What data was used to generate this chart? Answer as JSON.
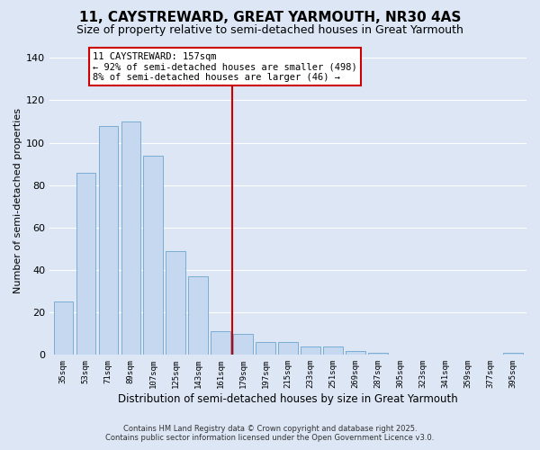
{
  "title": "11, CAYSTREWARD, GREAT YARMOUTH, NR30 4AS",
  "subtitle": "Size of property relative to semi-detached houses in Great Yarmouth",
  "xlabel": "Distribution of semi-detached houses by size in Great Yarmouth",
  "ylabel": "Number of semi-detached properties",
  "categories": [
    "35sqm",
    "53sqm",
    "71sqm",
    "89sqm",
    "107sqm",
    "125sqm",
    "143sqm",
    "161sqm",
    "179sqm",
    "197sqm",
    "215sqm",
    "233sqm",
    "251sqm",
    "269sqm",
    "287sqm",
    "305sqm",
    "323sqm",
    "341sqm",
    "359sqm",
    "377sqm",
    "395sqm"
  ],
  "values": [
    25,
    86,
    108,
    110,
    94,
    49,
    37,
    11,
    10,
    6,
    6,
    4,
    4,
    2,
    1,
    0,
    0,
    0,
    0,
    0,
    1
  ],
  "bar_color": "#c5d8f0",
  "bar_edge_color": "#7aadd4",
  "vline_x_index": 7,
  "vline_color": "#cc0000",
  "annotation_title": "11 CAYSTREWARD: 157sqm",
  "annotation_line1": "← 92% of semi-detached houses are smaller (498)",
  "annotation_line2": "8% of semi-detached houses are larger (46) →",
  "annotation_box_color": "#ffffff",
  "annotation_box_edge": "#cc0000",
  "ylim": [
    0,
    145
  ],
  "yticks": [
    0,
    20,
    40,
    60,
    80,
    100,
    120,
    140
  ],
  "footer1": "Contains HM Land Registry data © Crown copyright and database right 2025.",
  "footer2": "Contains public sector information licensed under the Open Government Licence v3.0.",
  "fig_background_color": "#dce6f5",
  "plot_bg_color": "#dce6f5",
  "grid_color": "#ffffff",
  "title_fontsize": 11,
  "subtitle_fontsize": 9
}
